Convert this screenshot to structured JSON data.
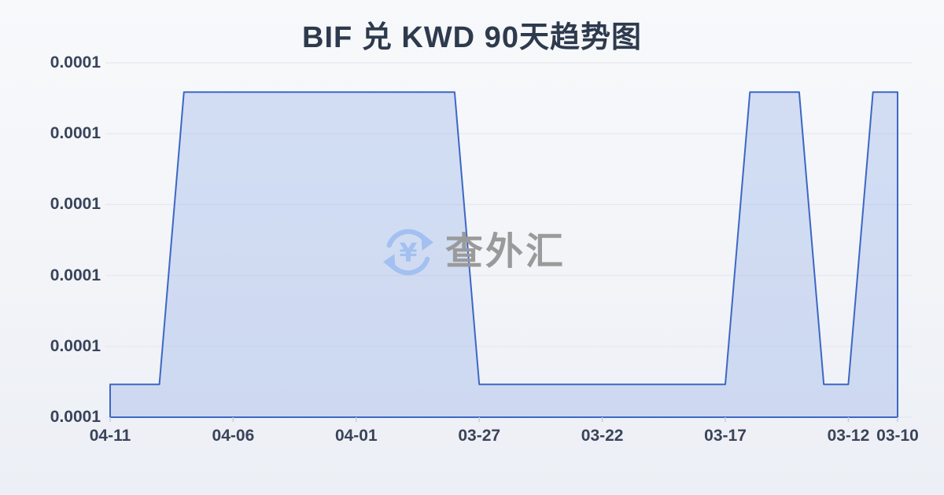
{
  "page": {
    "watermark": {
      "icon": "currency-refresh-icon",
      "text": "查外汇"
    }
  },
  "chart_data": {
    "type": "area",
    "title": "BIF 兑 KWD 90天趋势图",
    "categories": [
      "04-11",
      "04-10",
      "04-09",
      "04-08",
      "04-07",
      "04-06",
      "04-05",
      "04-04",
      "04-03",
      "04-02",
      "04-01",
      "03-31",
      "03-30",
      "03-29",
      "03-28",
      "03-27",
      "03-26",
      "03-25",
      "03-24",
      "03-23",
      "03-22",
      "03-21",
      "03-20",
      "03-19",
      "03-18",
      "03-17",
      "03-16",
      "03-15",
      "03-14",
      "03-13",
      "03-12",
      "03-11",
      "03-10"
    ],
    "values": [
      0.0001,
      0.0001,
      0.0001,
      0.000104,
      0.000104,
      0.000104,
      0.000104,
      0.000104,
      0.000104,
      0.000104,
      0.000104,
      0.000104,
      0.000104,
      0.000104,
      0.000104,
      0.0001,
      0.0001,
      0.0001,
      0.0001,
      0.0001,
      0.0001,
      0.0001,
      0.0001,
      0.0001,
      0.0001,
      0.0001,
      0.000104,
      0.000104,
      0.000104,
      0.0001,
      0.0001,
      0.000104,
      0.000104
    ],
    "value_levels": {
      "low": 0.0001,
      "high": 0.000104
    },
    "y_axis": {
      "min": 9.955e-05,
      "max": 0.0001044,
      "tick_labels": [
        "0.0001",
        "0.0001",
        "0.0001",
        "0.0001",
        "0.0001",
        "0.0001"
      ],
      "grid": true
    },
    "x_axis": {
      "tick_indices": [
        0,
        5,
        10,
        15,
        20,
        25,
        30,
        32
      ],
      "tick_labels": [
        "04-11",
        "04-06",
        "04-01",
        "03-27",
        "03-22",
        "03-17",
        "03-12",
        "03-10"
      ]
    },
    "legend": {
      "visible": false
    },
    "colors": {
      "line": "#3d67c4",
      "fill": "rgba(130,163,228,0.30)",
      "grid": "#e5e8ee",
      "tick": "#c8cfda",
      "axis_text": "#39445a",
      "title_text": "#2e3a4d",
      "watermark_text": "#9a9a9a",
      "watermark_icon": "#a3c0f0",
      "background": "#f2f4f8"
    }
  }
}
